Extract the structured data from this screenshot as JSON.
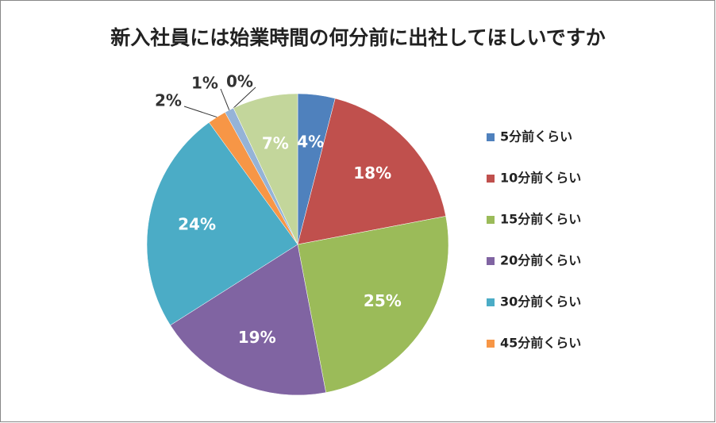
{
  "chart_data": {
    "type": "pie",
    "title": "新入社員には始業時間の何分前に出社してほしいですか",
    "categories": [
      "5分前くらい",
      "10分前くらい",
      "15分前くらい",
      "20分前くらい",
      "30分前くらい",
      "45分前くらい",
      null,
      null,
      null
    ],
    "values": [
      4,
      18,
      25,
      19,
      24,
      2,
      1,
      0,
      7
    ],
    "value_labels": [
      "4%",
      "18%",
      "25%",
      "19%",
      "24%",
      "2%",
      "1%",
      "0%",
      "7%"
    ],
    "colors": [
      "#4f81bd",
      "#c0504d",
      "#9bbb59",
      "#8064a2",
      "#4bacc6",
      "#f79646",
      "#95b3d7",
      "#d99694",
      "#c3d69b"
    ]
  }
}
